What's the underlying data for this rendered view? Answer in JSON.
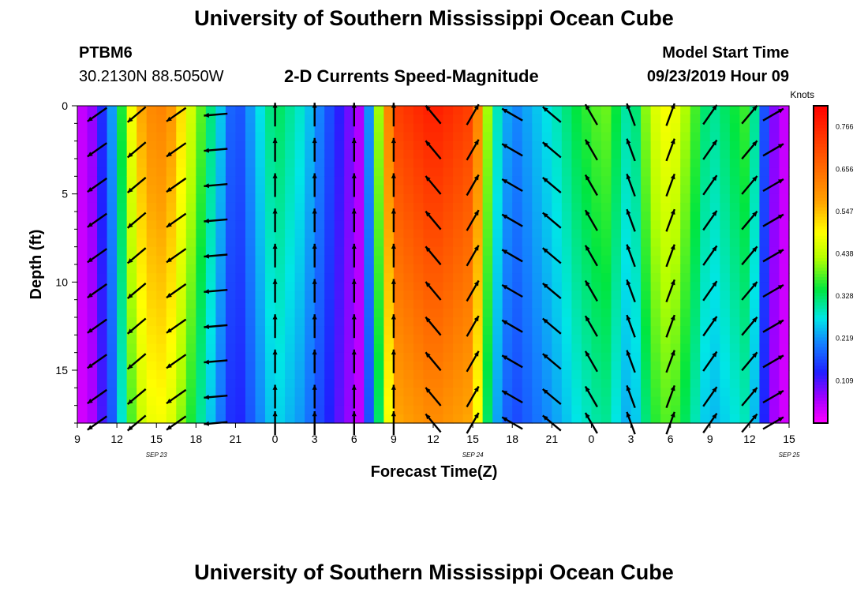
{
  "header": {
    "title_top": "University of Southern Mississippi Ocean Cube",
    "station": "PTBM6",
    "location": "30.2130N 88.5050W",
    "chart_title": "2-D Currents Speed-Magnitude",
    "model_start_label": "Model Start Time",
    "model_start_value": "09/23/2019 Hour 09",
    "title_bottom": "University of Southern Mississippi Ocean Cube"
  },
  "chart_data": {
    "type": "heatmap",
    "xlabel": "Forecast Time(Z)",
    "ylabel": "Depth (ft)",
    "colorbar_label": "Knots",
    "x_tick_labels": [
      "9",
      "12",
      "15",
      "18",
      "21",
      "0",
      "3",
      "6",
      "9",
      "12",
      "15",
      "18",
      "21",
      "0",
      "3",
      "6",
      "9",
      "12",
      "15"
    ],
    "date_labels": [
      {
        "label": "SEP 23",
        "hour_index": 6
      },
      {
        "label": "SEP 24",
        "hour_index": 30
      },
      {
        "label": "SEP 25",
        "hour_index": 54
      }
    ],
    "x_range_hours": [
      0,
      54
    ],
    "y_ticks": [
      0,
      5,
      10,
      15
    ],
    "ylim": [
      0,
      18
    ],
    "colorbar_ticks": [
      "0.766",
      "0.656",
      "0.547",
      "0.438",
      "0.328",
      "0.219",
      "0.109"
    ],
    "colorbar_range": [
      0,
      0.82
    ],
    "speed_profile": {
      "hours": [
        0,
        1,
        2.5,
        3.5,
        4.5,
        6,
        7,
        9,
        12,
        15,
        17,
        18.5,
        20,
        21.5,
        24,
        27,
        30,
        31.5,
        33,
        36,
        38,
        40,
        42,
        43.5,
        45,
        48,
        51,
        52.5,
        54
      ],
      "speed_knots": [
        0.03,
        0.06,
        0.2,
        0.38,
        0.55,
        0.63,
        0.6,
        0.42,
        0.15,
        0.34,
        0.28,
        0.2,
        0.12,
        0.05,
        0.72,
        0.78,
        0.72,
        0.32,
        0.2,
        0.28,
        0.35,
        0.4,
        0.28,
        0.45,
        0.5,
        0.3,
        0.38,
        0.1,
        0.02
      ]
    },
    "arrow_columns": [
      {
        "hour": 1.5,
        "dir_deg": 235
      },
      {
        "hour": 4.5,
        "dir_deg": 230
      },
      {
        "hour": 7.5,
        "dir_deg": 235
      },
      {
        "hour": 10.5,
        "dir_deg": 265
      },
      {
        "hour": 15,
        "dir_deg": 0
      },
      {
        "hour": 18,
        "dir_deg": 0
      },
      {
        "hour": 21,
        "dir_deg": 0
      },
      {
        "hour": 24,
        "dir_deg": 0
      },
      {
        "hour": 27,
        "dir_deg": 320
      },
      {
        "hour": 30,
        "dir_deg": 30
      },
      {
        "hour": 33,
        "dir_deg": 300
      },
      {
        "hour": 36,
        "dir_deg": 310
      },
      {
        "hour": 39,
        "dir_deg": 330
      },
      {
        "hour": 42,
        "dir_deg": 340
      },
      {
        "hour": 45,
        "dir_deg": 20
      },
      {
        "hour": 48,
        "dir_deg": 35
      },
      {
        "hour": 51,
        "dir_deg": 40
      },
      {
        "hour": 52.8,
        "dir_deg": 60
      }
    ]
  }
}
